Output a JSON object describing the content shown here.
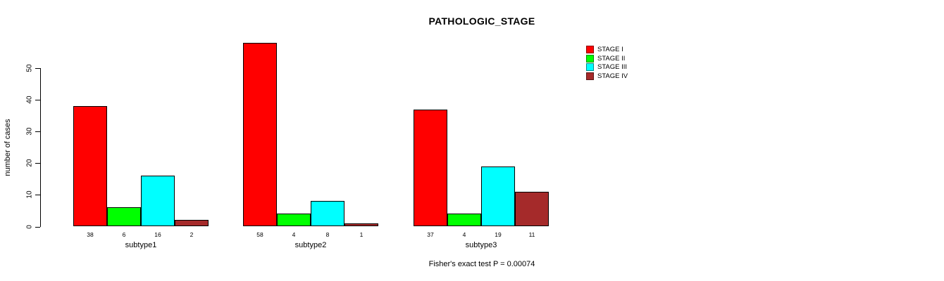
{
  "chart_data": {
    "type": "bar",
    "title": "PATHOLOGIC_STAGE",
    "ylabel": "number of cases",
    "xlabel": "",
    "yticks": [
      0,
      10,
      20,
      30,
      40,
      50
    ],
    "ylim": [
      0,
      58
    ],
    "grid": false,
    "legend_position": "top-right",
    "categories": [
      "subtype1",
      "subtype2",
      "subtype3"
    ],
    "series": [
      {
        "name": "STAGE I",
        "color": "#FF0000",
        "values": [
          38,
          58,
          37
        ]
      },
      {
        "name": "STAGE II",
        "color": "#00FF00",
        "values": [
          6,
          4,
          4
        ]
      },
      {
        "name": "STAGE III",
        "color": "#00FFFF",
        "values": [
          16,
          8,
          19
        ]
      },
      {
        "name": "STAGE IV",
        "color": "#A52A2A",
        "values": [
          2,
          1,
          11
        ]
      }
    ],
    "bar_value_labels_shown": true,
    "footer": "Fisher's exact test P = 0.00074"
  },
  "colors": {
    "background": "#FFFFFF",
    "axis": "#000000",
    "text": "#000000"
  }
}
